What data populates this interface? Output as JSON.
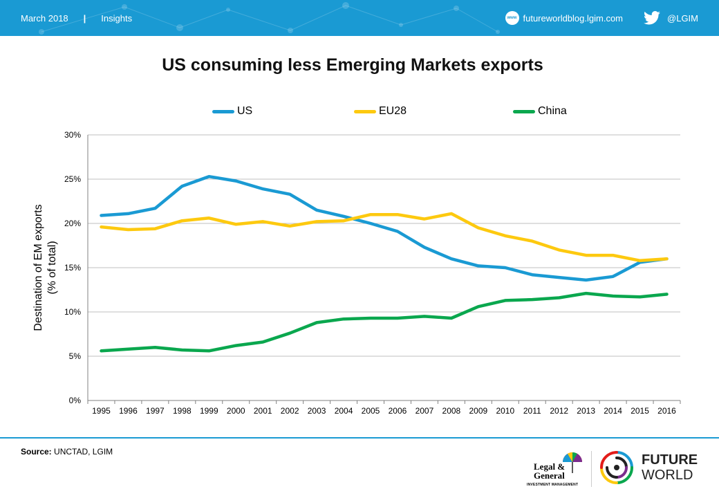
{
  "header": {
    "date": "March 2018",
    "separator": "|",
    "section": "Insights",
    "www_label": "www",
    "website": "futureworldblog.lgim.com",
    "twitter_handle": "@LGIM",
    "bar_color": "#1a9ad3"
  },
  "chart_data": {
    "type": "line",
    "title": "US consuming less Emerging Markets exports",
    "ylabel": "Destination of EM exports (% of total)",
    "ylabel_lines": [
      "Destination of EM exports",
      "(% of total)"
    ],
    "xlabel": "",
    "ylim": [
      0,
      30
    ],
    "yticks": [
      0,
      5,
      10,
      15,
      20,
      25,
      30
    ],
    "ytick_labels": [
      "0%",
      "5%",
      "10%",
      "15%",
      "20%",
      "25%",
      "30%"
    ],
    "grid": true,
    "legend_position": "top",
    "categories": [
      "1995",
      "1996",
      "1997",
      "1998",
      "1999",
      "2000",
      "2001",
      "2002",
      "2003",
      "2004",
      "2005",
      "2006",
      "2007",
      "2008",
      "2009",
      "2010",
      "2011",
      "2012",
      "2013",
      "2014",
      "2015",
      "2016"
    ],
    "series": [
      {
        "name": "US",
        "color": "#1a9ad3",
        "values": [
          20.9,
          21.1,
          21.7,
          24.2,
          25.3,
          24.8,
          23.9,
          23.3,
          21.5,
          20.8,
          20.0,
          19.1,
          17.3,
          16.0,
          15.2,
          15.0,
          14.2,
          13.9,
          13.6,
          14.0,
          15.6,
          16.0
        ]
      },
      {
        "name": "EU28",
        "color": "#fdc90f",
        "values": [
          19.6,
          19.3,
          19.4,
          20.3,
          20.6,
          19.9,
          20.2,
          19.7,
          20.2,
          20.3,
          21.0,
          21.0,
          20.5,
          21.1,
          19.5,
          18.6,
          18.0,
          17.0,
          16.4,
          16.4,
          15.8,
          16.0
        ]
      },
      {
        "name": "China",
        "color": "#0aa74e",
        "values": [
          5.6,
          5.8,
          6.0,
          5.7,
          5.6,
          6.2,
          6.6,
          7.6,
          8.8,
          9.2,
          9.3,
          9.3,
          9.5,
          9.3,
          10.6,
          11.3,
          11.4,
          11.6,
          12.1,
          11.8,
          11.7,
          12.0
        ]
      }
    ]
  },
  "footer": {
    "source_label": "Source:",
    "source_text": "UNCTAD, LGIM",
    "lg_line1": "Legal &",
    "lg_line2": "General",
    "lg_sub": "INVESTMENT MANAGEMENT",
    "fw_line1": "FUTURE",
    "fw_line2": "WORLD"
  }
}
